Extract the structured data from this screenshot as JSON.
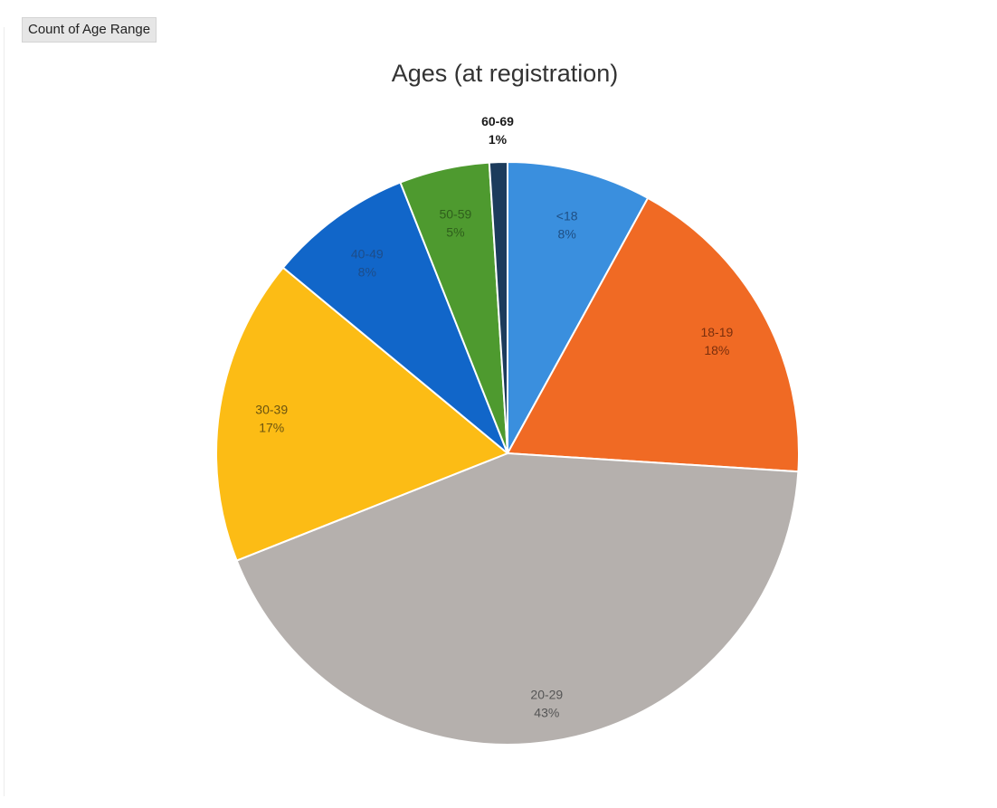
{
  "field_button": {
    "label": "Count of Age Range"
  },
  "chart_data": {
    "type": "pie",
    "title": "Ages (at registration)",
    "categories": [
      "<18",
      "18-19",
      "20-29",
      "30-39",
      "40-49",
      "50-59",
      "60-69"
    ],
    "values": [
      8,
      18,
      43,
      17,
      8,
      5,
      1
    ],
    "value_labels": [
      "8%",
      "18%",
      "43%",
      "17%",
      "8%",
      "5%",
      "1%"
    ],
    "colors": [
      "#3a8fde",
      "#f06a24",
      "#b5b0ad",
      "#fcbc15",
      "#1166c9",
      "#4e9a2f",
      "#1c3b5c"
    ],
    "label_colors": [
      "#1f4f84",
      "#7a2f0d",
      "#555555",
      "#6b5410",
      "#1d4d8a",
      "#2f5f1c",
      "#1a1a1a"
    ],
    "legend": "none",
    "data_labels": "category name and percentage"
  }
}
